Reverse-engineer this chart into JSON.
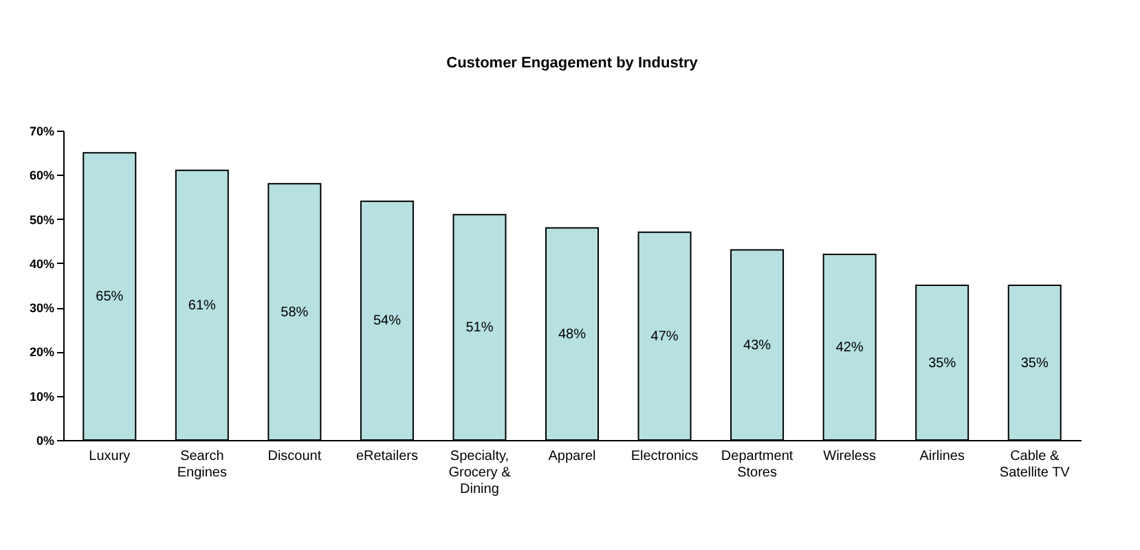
{
  "chart_data": {
    "type": "bar",
    "title": "Customer Engagement by Industry",
    "categories": [
      "Luxury",
      "Search Engines",
      "Discount",
      "eRetailers",
      "Specialty, Grocery & Dining",
      "Apparel",
      "Electronics",
      "Department Stores",
      "Wireless",
      "Airlines",
      "Cable & Satellite TV"
    ],
    "values": [
      65,
      61,
      58,
      54,
      51,
      48,
      47,
      43,
      42,
      35,
      35
    ],
    "value_labels": [
      "65%",
      "61%",
      "58%",
      "54%",
      "51%",
      "48%",
      "47%",
      "43%",
      "42%",
      "35%",
      "35%"
    ],
    "color": "#b7e0e0",
    "ylim": [
      0,
      70
    ],
    "yticks": [
      {
        "value": 0,
        "label": "0%"
      },
      {
        "value": 10,
        "label": "10%"
      },
      {
        "value": 20,
        "label": "20%"
      },
      {
        "value": 30,
        "label": "30%"
      },
      {
        "value": 40,
        "label": "40%"
      },
      {
        "value": 50,
        "label": "50%"
      },
      {
        "value": 60,
        "label": "60%"
      },
      {
        "value": 70,
        "label": "70%"
      }
    ],
    "grid": false
  }
}
